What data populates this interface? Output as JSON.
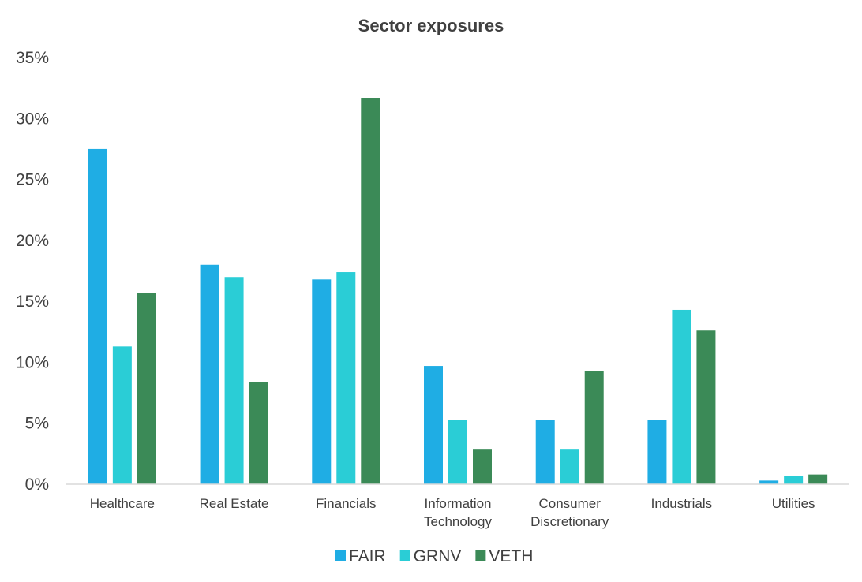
{
  "chart_data": {
    "type": "bar",
    "title": "Sector exposures",
    "xlabel": "",
    "ylabel": "",
    "ylim": [
      0,
      35
    ],
    "yticks": [
      0,
      5,
      10,
      15,
      20,
      25,
      30,
      35
    ],
    "ytick_labels": [
      "0%",
      "5%",
      "10%",
      "15%",
      "20%",
      "25%",
      "30%",
      "35%"
    ],
    "grid": false,
    "legend_position": "bottom",
    "categories": [
      [
        "Healthcare"
      ],
      [
        "Real Estate"
      ],
      [
        "Financials"
      ],
      [
        "Information",
        "Technology"
      ],
      [
        "Consumer",
        "Discretionary"
      ],
      [
        "Industrials"
      ],
      [
        "Utilities"
      ]
    ],
    "series": [
      {
        "name": "FAIR",
        "color": "#1fade4",
        "values": [
          27.5,
          18.0,
          16.8,
          9.7,
          5.3,
          5.3,
          0.3
        ]
      },
      {
        "name": "GRNV",
        "color": "#2acdd6",
        "values": [
          11.3,
          17.0,
          17.4,
          5.3,
          2.9,
          14.3,
          0.7
        ]
      },
      {
        "name": "VETH",
        "color": "#3b8a57",
        "values": [
          15.7,
          8.4,
          31.7,
          2.9,
          9.3,
          12.6,
          0.8
        ]
      }
    ]
  }
}
